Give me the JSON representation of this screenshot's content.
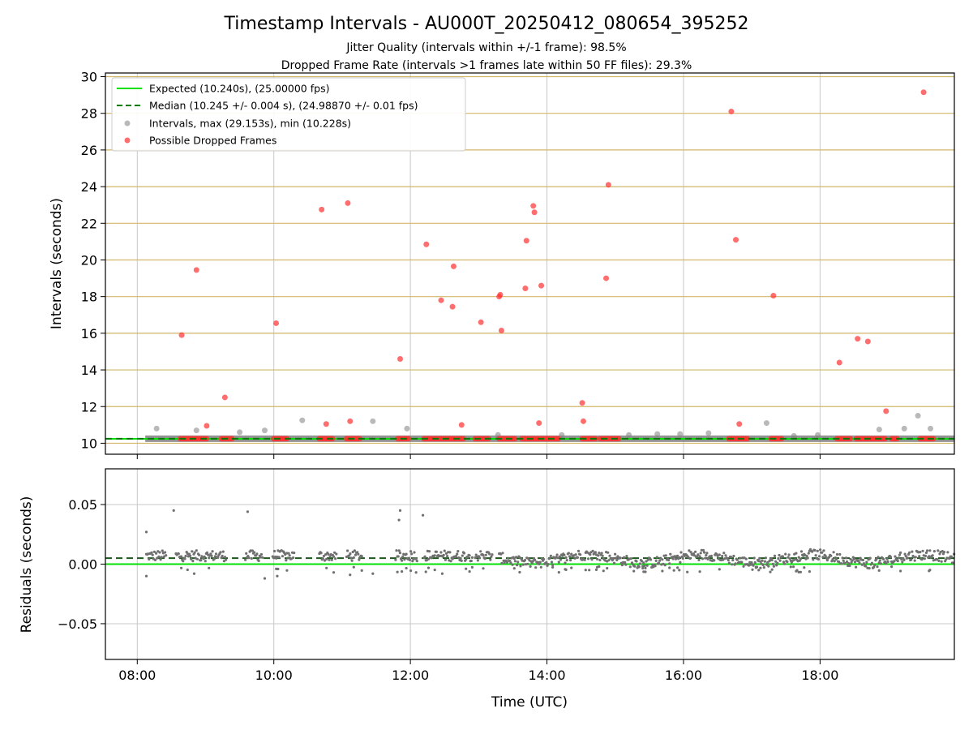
{
  "title": "Timestamp Intervals - AU000T_20250412_080654_395252",
  "subtitle_1": "Jitter Quality (intervals within +/-1 frame): 98.5%",
  "subtitle_2": "Dropped Frame Rate (intervals >1 frames late within 50 FF files): 29.3%",
  "colors": {
    "expected": "#00e000",
    "median": "#007a00",
    "interval_marker": "#808080",
    "dropped_marker": "#ff3030",
    "hgrid_top": "#d2b76a",
    "grid": "#c8c8c8"
  },
  "chart_data": [
    {
      "type": "scatter",
      "ylabel": "Intervals (seconds)",
      "xlim": [
        "07:32",
        "19:58"
      ],
      "ylim": [
        9.4,
        30.2
      ],
      "yticks": [
        10,
        12,
        14,
        16,
        18,
        20,
        22,
        24,
        26,
        28,
        30
      ],
      "grid": true,
      "legend_position": "upper-left",
      "legend": [
        "Expected (10.240s), (25.00000 fps)",
        "Median (10.245 +/- 0.004 s), (24.98870 +/- 0.01 fps)",
        "Intervals, max (29.153s), min (10.228s)",
        "Possible Dropped Frames"
      ],
      "expected_value": 10.24,
      "median_value": 10.245,
      "intervals_band": {
        "start": "08:07",
        "end": "19:58",
        "value": 10.245
      },
      "intervals_outliers": [
        [
          "08:17",
          10.8
        ],
        [
          "08:52",
          10.7
        ],
        [
          "09:30",
          10.6
        ],
        [
          "09:52",
          10.7
        ],
        [
          "10:25",
          11.25
        ],
        [
          "11:27",
          11.2
        ],
        [
          "11:57",
          10.8
        ],
        [
          "13:17",
          10.45
        ],
        [
          "14:13",
          10.45
        ],
        [
          "15:12",
          10.45
        ],
        [
          "15:37",
          10.5
        ],
        [
          "15:57",
          10.5
        ],
        [
          "16:22",
          10.55
        ],
        [
          "17:13",
          11.1
        ],
        [
          "17:37",
          10.4
        ],
        [
          "17:58",
          10.45
        ],
        [
          "18:52",
          10.75
        ],
        [
          "19:14",
          10.8
        ],
        [
          "19:26",
          11.5
        ],
        [
          "19:37",
          10.8
        ]
      ],
      "dropped_frames": [
        [
          "08:39",
          15.9
        ],
        [
          "08:52",
          19.45
        ],
        [
          "09:01",
          10.95
        ],
        [
          "09:17",
          12.5
        ],
        [
          "10:02",
          16.55
        ],
        [
          "10:42",
          22.75
        ],
        [
          "10:46",
          11.05
        ],
        [
          "11:05",
          23.1
        ],
        [
          "11:07",
          11.2
        ],
        [
          "11:51",
          14.6
        ],
        [
          "12:14",
          20.85
        ],
        [
          "12:27",
          17.8
        ],
        [
          "12:37",
          17.45
        ],
        [
          "12:38",
          19.65
        ],
        [
          "12:45",
          11.0
        ],
        [
          "13:02",
          16.6
        ],
        [
          "13:18",
          18.0
        ],
        [
          "13:19",
          18.1
        ],
        [
          "13:20",
          16.15
        ],
        [
          "13:41",
          18.45
        ],
        [
          "13:42",
          21.05
        ],
        [
          "13:48",
          22.95
        ],
        [
          "13:49",
          22.6
        ],
        [
          "13:53",
          11.1
        ],
        [
          "13:55",
          18.6
        ],
        [
          "14:31",
          12.2
        ],
        [
          "14:32",
          11.2
        ],
        [
          "14:52",
          19.0
        ],
        [
          "14:54",
          24.1
        ],
        [
          "16:42",
          28.1
        ],
        [
          "16:46",
          21.1
        ],
        [
          "16:49",
          11.05
        ],
        [
          "17:19",
          18.05
        ],
        [
          "18:17",
          14.4
        ],
        [
          "18:33",
          15.7
        ],
        [
          "18:42",
          15.55
        ],
        [
          "18:58",
          11.75
        ],
        [
          "19:31",
          29.15
        ]
      ],
      "dropped_baseline_ranges": [
        [
          "08:38",
          "08:52"
        ],
        [
          "08:54",
          "09:03"
        ],
        [
          "09:14",
          "09:25"
        ],
        [
          "10:00",
          "10:13"
        ],
        [
          "10:40",
          "10:53"
        ],
        [
          "11:04",
          "11:17"
        ],
        [
          "11:49",
          "12:00"
        ],
        [
          "12:12",
          "12:25"
        ],
        [
          "12:26",
          "12:48"
        ],
        [
          "12:57",
          "13:09"
        ],
        [
          "13:18",
          "13:33"
        ],
        [
          "13:38",
          "13:52"
        ],
        [
          "13:54",
          "14:10"
        ],
        [
          "14:31",
          "14:43"
        ],
        [
          "14:47",
          "15:04"
        ],
        [
          "16:40",
          "16:58"
        ],
        [
          "17:17",
          "17:28"
        ],
        [
          "18:15",
          "18:28"
        ],
        [
          "18:32",
          "18:58"
        ],
        [
          "19:03",
          "19:09"
        ],
        [
          "19:28",
          "19:41"
        ]
      ]
    },
    {
      "type": "scatter",
      "ylabel": "Residuals (seconds)",
      "xlabel": "Time (UTC)",
      "xlim": [
        "07:32",
        "19:58"
      ],
      "ylim": [
        -0.08,
        0.08
      ],
      "yticks": [
        0.05,
        0.0,
        -0.05
      ],
      "ytick_labels": [
        "0.05",
        "0.00",
        "−0.05"
      ],
      "xticks": [
        "08:00",
        "10:00",
        "12:00",
        "14:00",
        "16:00",
        "18:00"
      ],
      "grid": true,
      "expected_value": 0.0,
      "median_value": 0.005,
      "residual_outliers": [
        [
          "08:08",
          0.027
        ],
        [
          "08:32",
          0.045
        ],
        [
          "09:37",
          0.044
        ],
        [
          "09:52",
          -0.012
        ],
        [
          "11:50",
          0.037
        ],
        [
          "11:51",
          0.045
        ],
        [
          "12:11",
          0.041
        ],
        [
          "08:08",
          -0.01
        ],
        [
          "08:50",
          -0.008
        ],
        [
          "10:03",
          -0.01
        ],
        [
          "11:07",
          -0.009
        ],
        [
          "11:27",
          -0.008
        ],
        [
          "12:05",
          -0.007
        ],
        [
          "12:28",
          -0.008
        ]
      ]
    }
  ]
}
